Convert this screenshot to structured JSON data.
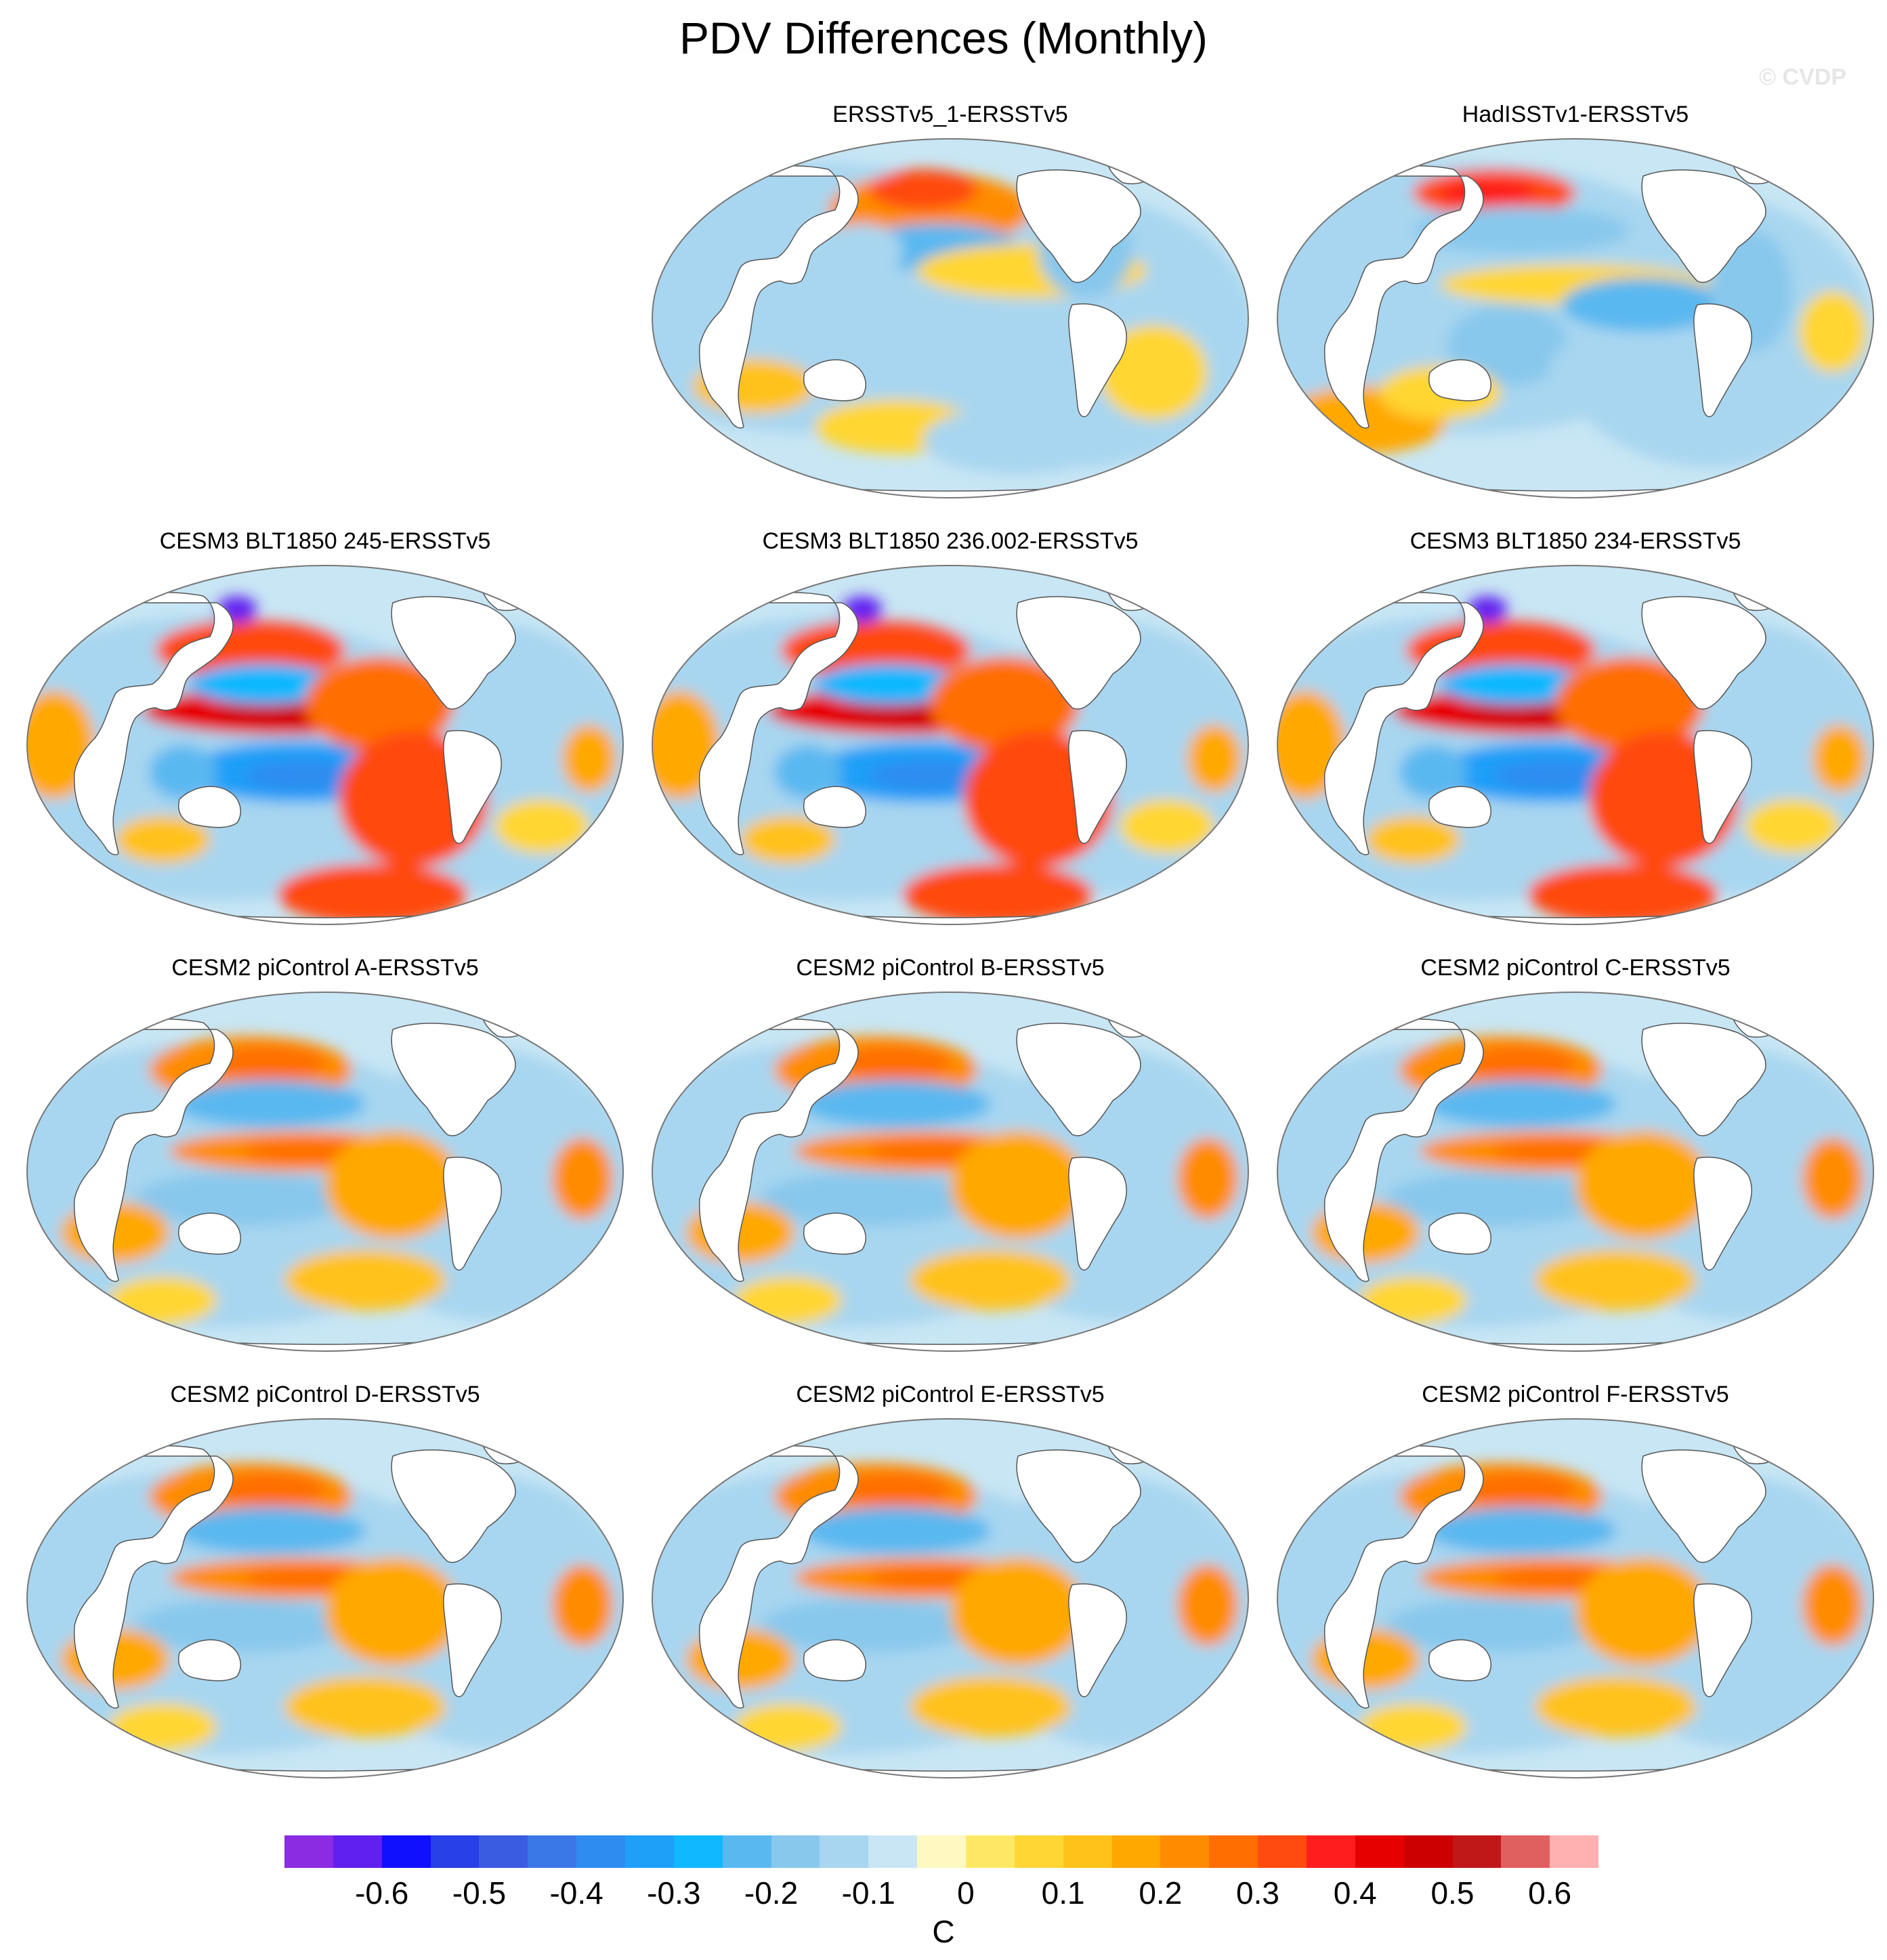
{
  "title": "PDV Differences (Monthly)",
  "watermark": "© CVDP",
  "colorbar": {
    "unit": "C",
    "tick_labels": [
      "-0.6",
      "-0.5",
      "-0.4",
      "-0.3",
      "-0.2",
      "-0.1",
      "0",
      "0.1",
      "0.2",
      "0.3",
      "0.4",
      "0.5",
      "0.6"
    ],
    "tick_values": [
      -0.6,
      -0.5,
      -0.4,
      -0.3,
      -0.2,
      -0.1,
      0,
      0.1,
      0.2,
      0.3,
      0.4,
      0.5,
      0.6
    ],
    "min": -0.7,
    "max": 0.7,
    "step": 0.05,
    "colors": [
      "#8B2BE2",
      "#6020F0",
      "#1010FF",
      "#2840E8",
      "#3A5CE0",
      "#3A78E8",
      "#2E8CF0",
      "#1E9FF8",
      "#10B8FF",
      "#5AB8F0",
      "#88C8EC",
      "#A8D6F0",
      "#C8E6F4",
      "#FFF8C0",
      "#FFE866",
      "#FFD633",
      "#FFC21A",
      "#FFA800",
      "#FF8C00",
      "#FF6E00",
      "#FF4A10",
      "#FF1E1E",
      "#E60000",
      "#CC0000",
      "#C01818",
      "#E06060",
      "#FFB0B0"
    ]
  },
  "panels": [
    {
      "id": "ersstv5_1",
      "title": "ERSSTv5_1-ERSSTv5",
      "row": 0,
      "col": 1,
      "pattern": "obs_a"
    },
    {
      "id": "hadisstv1",
      "title": "HadISSTv1-ERSSTv5",
      "row": 0,
      "col": 2,
      "pattern": "obs_b"
    },
    {
      "id": "cesm3_245",
      "title": "CESM3 BLT1850 245-ERSSTv5",
      "row": 1,
      "col": 0,
      "pattern": "cesm3"
    },
    {
      "id": "cesm3_236",
      "title": "CESM3 BLT1850 236.002-ERSSTv5",
      "row": 1,
      "col": 1,
      "pattern": "cesm3"
    },
    {
      "id": "cesm3_234",
      "title": "CESM3 BLT1850 234-ERSSTv5",
      "row": 1,
      "col": 2,
      "pattern": "cesm3"
    },
    {
      "id": "cesm2_a",
      "title": "CESM2 piControl A-ERSSTv5",
      "row": 2,
      "col": 0,
      "pattern": "cesm2"
    },
    {
      "id": "cesm2_b",
      "title": "CESM2 piControl B-ERSSTv5",
      "row": 2,
      "col": 1,
      "pattern": "cesm2"
    },
    {
      "id": "cesm2_c",
      "title": "CESM2 piControl C-ERSSTv5",
      "row": 2,
      "col": 2,
      "pattern": "cesm2"
    },
    {
      "id": "cesm2_d",
      "title": "CESM2 piControl D-ERSSTv5",
      "row": 3,
      "col": 0,
      "pattern": "cesm2"
    },
    {
      "id": "cesm2_e",
      "title": "CESM2 piControl E-ERSSTv5",
      "row": 3,
      "col": 1,
      "pattern": "cesm2"
    },
    {
      "id": "cesm2_f",
      "title": "CESM2 piControl F-ERSSTv5",
      "row": 3,
      "col": 2,
      "pattern": "cesm2"
    }
  ]
}
